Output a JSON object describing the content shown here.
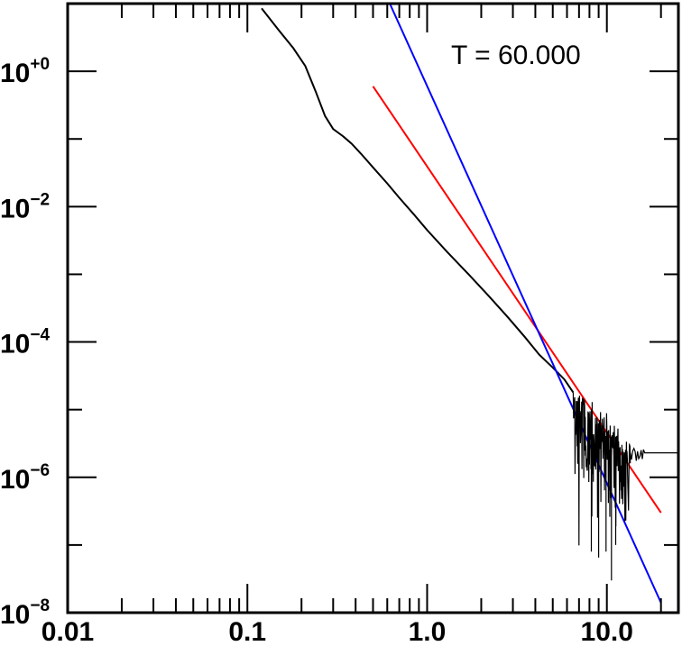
{
  "chart_data": {
    "type": "line",
    "xscale": "log",
    "yscale": "log",
    "xlim": [
      0.01,
      25
    ],
    "ylim": [
      1e-08,
      10
    ],
    "x_ticks": [
      {
        "value": 0.01,
        "label": "0.01"
      },
      {
        "value": 0.1,
        "label": "0.1"
      },
      {
        "value": 1,
        "label": "1.0"
      },
      {
        "value": 10,
        "label": "10.0"
      }
    ],
    "y_ticks": [
      {
        "value": 1,
        "base": "10",
        "exp": "+0"
      },
      {
        "value": 0.01,
        "base": "10",
        "exp": "−2"
      },
      {
        "value": 0.0001,
        "base": "10",
        "exp": "−4"
      },
      {
        "value": 1e-06,
        "base": "10",
        "exp": "−6"
      },
      {
        "value": 1e-08,
        "base": "10",
        "exp": "−8"
      }
    ],
    "annotation": "T = 60.000",
    "grid": false,
    "series": [
      {
        "color": "#000000",
        "x": [
          0.12,
          0.15,
          0.18,
          0.21,
          0.24,
          0.27,
          0.3,
          0.34,
          0.38,
          0.43,
          0.5,
          0.6,
          0.7,
          0.85,
          1.0,
          1.3,
          1.7,
          2.2,
          2.8,
          3.5,
          4.2,
          5.0,
          5.8,
          6.5
        ],
        "y": [
          8.5,
          4.0,
          2.2,
          1.2,
          0.5,
          0.22,
          0.14,
          0.11,
          0.085,
          0.06,
          0.038,
          0.022,
          0.0135,
          0.0075,
          0.0045,
          0.0021,
          0.001,
          0.00048,
          0.000235,
          0.000118,
          6.5e-05,
          4.2e-05,
          2.8e-05,
          1.8e-05
        ]
      },
      {
        "color": "#ff0000",
        "x": [
          0.5,
          20.0
        ],
        "y": [
          0.6,
          3e-07
        ]
      },
      {
        "color": "#0000ff",
        "x": [
          0.62,
          20.0
        ],
        "y": [
          10.0,
          1.4e-08
        ]
      }
    ],
    "noise_band": {
      "x_start": 6.5,
      "x_end": 25,
      "plateau_x": 13.5,
      "plateau_y": 2.3e-06,
      "min_spikes": [
        {
          "x": 8.2,
          "y": 8e-08
        },
        {
          "x": 9.0,
          "y": 6.5e-08
        },
        {
          "x": 9.9,
          "y": 8e-08
        },
        {
          "x": 10.6,
          "y": 3e-08
        },
        {
          "x": 11.2,
          "y": 1e-07
        }
      ]
    }
  }
}
